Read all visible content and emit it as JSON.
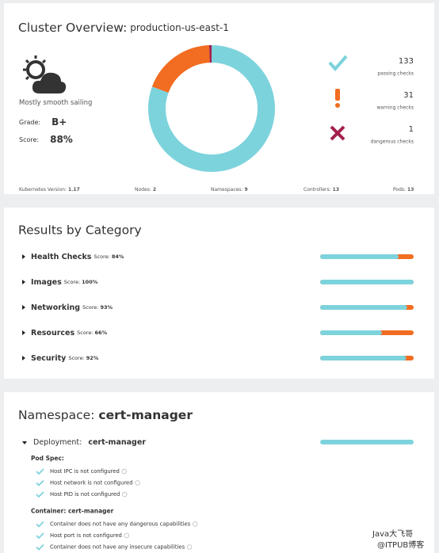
{
  "cluster": {
    "title": "Cluster Overview:",
    "name": "production-us-east-1",
    "status": "Mostly smooth sailing",
    "grade_label": "Grade:",
    "grade": "B+",
    "score_label": "Score:",
    "score": "88%",
    "checks": [
      {
        "count": 133,
        "label": "passing checks",
        "color": "#7dd3dc"
      },
      {
        "count": 31,
        "label": "warning checks",
        "color": "#f26c21"
      },
      {
        "count": 1,
        "label": "dangerous checks",
        "color": "#a3204d"
      }
    ],
    "footer": [
      {
        "label": "Kubernetes Version:",
        "value": "1.17"
      },
      {
        "label": "Nodes:",
        "value": "2"
      },
      {
        "label": "Namespaces:",
        "value": "9"
      },
      {
        "label": "Controllers:",
        "value": "13"
      },
      {
        "label": "Pods:",
        "value": "13"
      }
    ]
  },
  "categories": {
    "title": "Results by Category",
    "score_label": "Score:",
    "rows": [
      {
        "name": "Health Checks",
        "score": {
          "value": 84,
          "label": "84%"
        }
      },
      {
        "name": "Images",
        "score": {
          "value": 100,
          "label": "100%"
        }
      },
      {
        "name": "Networking",
        "score": {
          "value": 93,
          "label": "93%"
        }
      },
      {
        "name": "Resources",
        "score": {
          "value": 66,
          "label": "66%"
        }
      },
      {
        "name": "Security",
        "score": {
          "value": 92,
          "label": "92%"
        }
      }
    ]
  },
  "namespace": {
    "title": "Namespace:",
    "name": "cert-manager",
    "deployment_label": "Deployment:",
    "deployment": "cert-manager",
    "groups": [
      {
        "title": "Pod Spec:",
        "items": [
          "Host IPC is not configured",
          "Host network is not configured",
          "Host PID is not configured"
        ]
      },
      {
        "title": "Container: cert-manager",
        "items": [
          "Container does not have any dangerous capabilities",
          "Host port is not configured",
          "Container does not have any insecure capabilities"
        ]
      }
    ]
  },
  "watermark": [
    "Java大飞哥",
    "@ITPUB博客"
  ]
}
